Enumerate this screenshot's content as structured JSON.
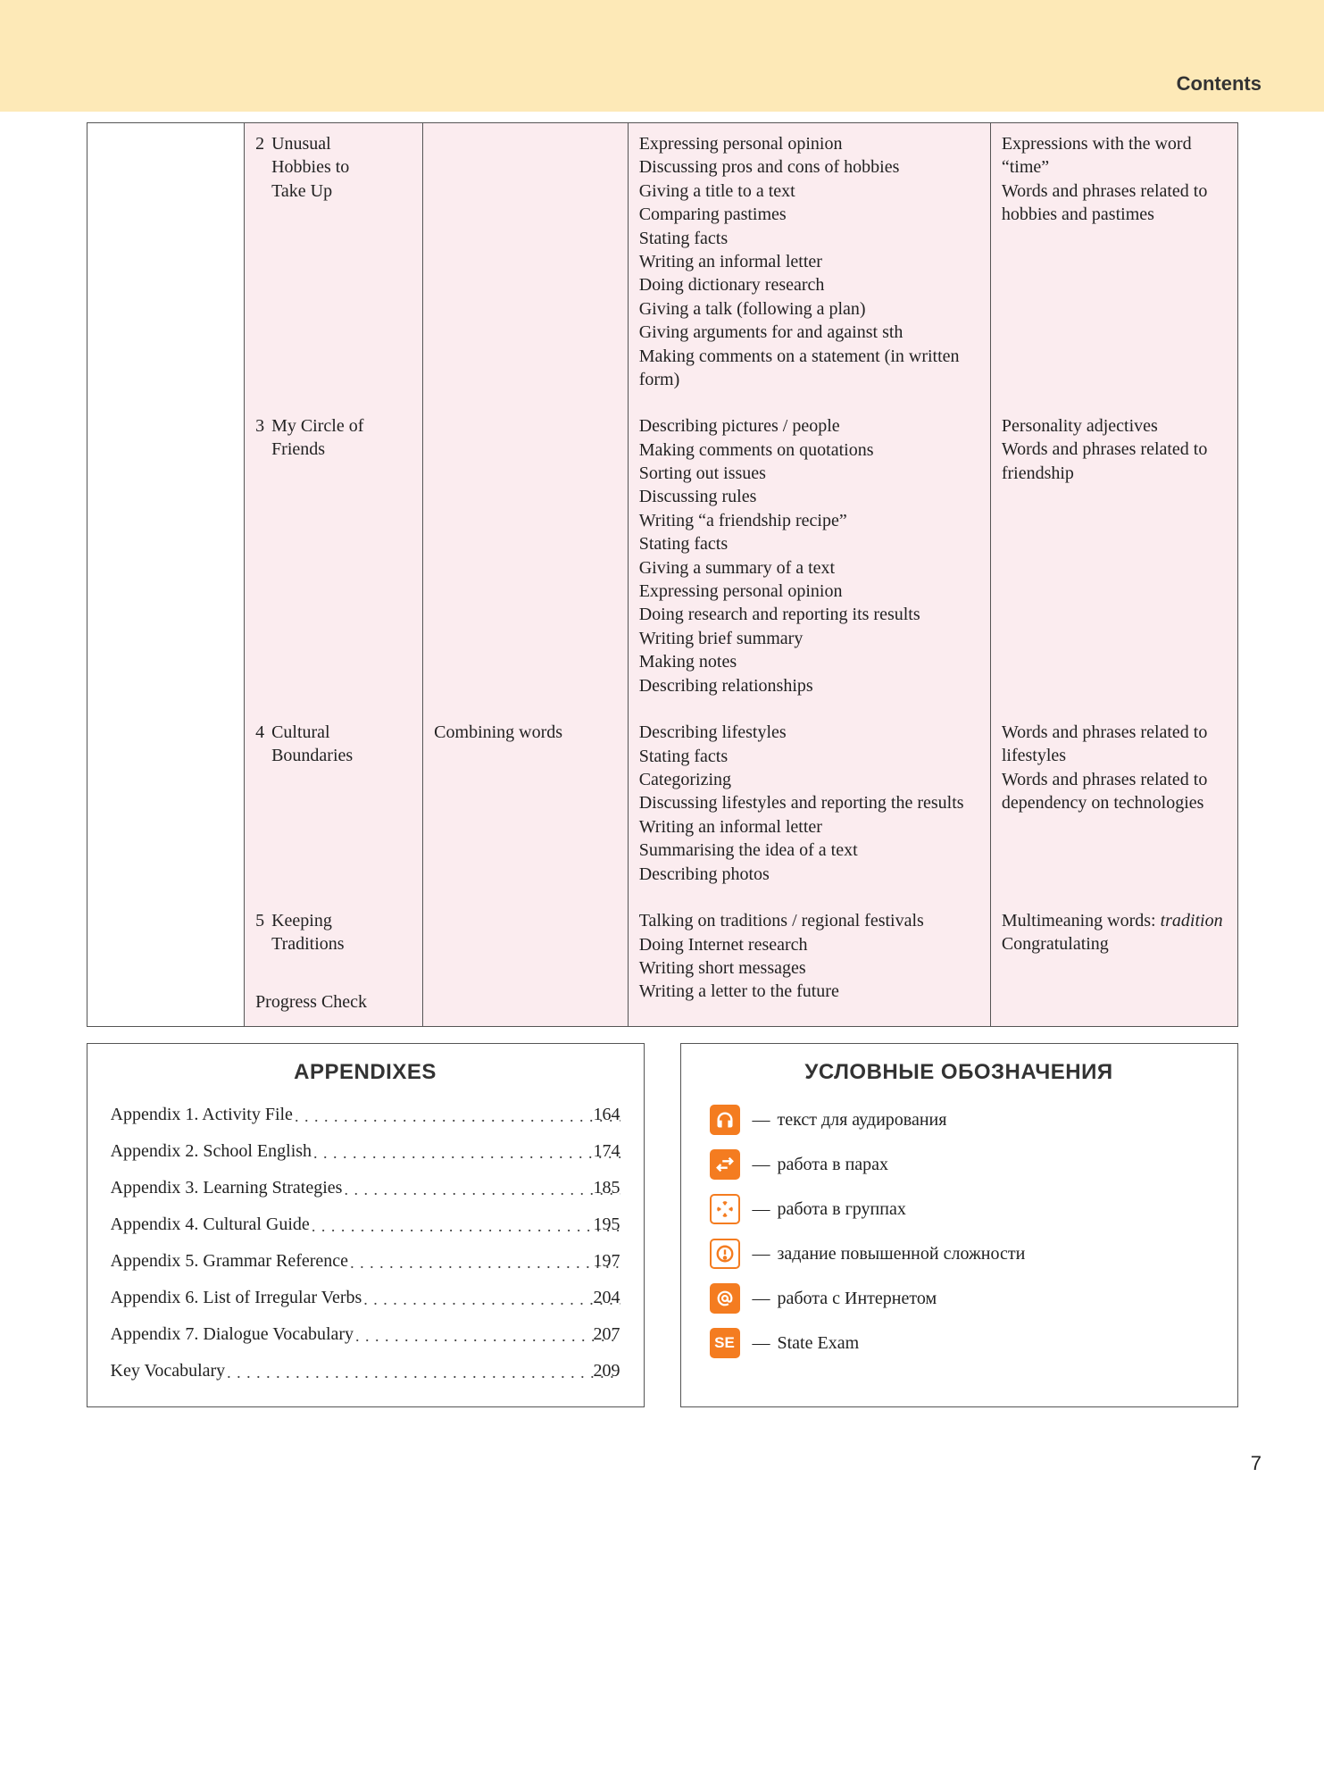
{
  "header": {
    "title": "Contents"
  },
  "pageNumber": "7",
  "units": [
    {
      "num": "2",
      "title": "Unusual Hobbies to Take Up",
      "col3": "",
      "col4": "Expressing personal opinion\nDiscussing pros and cons of hobbies\nGiving a title to a text\nComparing pastimes\nStating facts\nWriting an informal letter\nDoing dictionary research\nGiving a talk (following a plan)\nGiving arguments for and against sth\nMaking comments on a statement (in written form)",
      "col5": "Expressions with the word “time”\nWords and phrases related to hobbies and pastimes"
    },
    {
      "num": "3",
      "title": "My Circle of Friends",
      "col3": "",
      "col4": "Describing pictures / people\nMaking comments on quotations\nSorting out issues\nDiscussing rules\nWriting “a friendship recipe”\nStating facts\nGiving a summary of a text\nExpressing personal opinion\nDoing research and reporting its results\nWriting brief summary\nMaking notes\nDescribing relationships",
      "col5": "Personality adjectives\nWords and phrases related to friendship"
    },
    {
      "num": "4",
      "title": "Cultural Boundaries",
      "col3": "Combining words",
      "col4": "Describing lifestyles\nStating facts\nCategorizing\nDiscussing lifestyles and reporting the results\nWriting an informal letter\nSummarising the idea of a text\nDescribing photos",
      "col5": "Words and phrases related to lifestyles\nWords and phrases related to dependency on technologies"
    },
    {
      "num": "5",
      "title": "Keeping Traditions",
      "col3": "",
      "col4": "Talking on traditions / regional festivals\nDoing Internet research\nWriting short messages\nWriting a letter to the future",
      "col5_pre": "Multimeaning words: ",
      "col5_italic": "tradition",
      "col5_post": "Congratulating",
      "extra": "Progress Check"
    }
  ],
  "appendixes": {
    "title": "APPENDIXES",
    "items": [
      {
        "name": "Appendix 1. Activity File",
        "page": "164"
      },
      {
        "name": "Appendix 2. School English",
        "page": "174"
      },
      {
        "name": "Appendix 3. Learning Strategies",
        "page": "185"
      },
      {
        "name": "Appendix 4. Cultural Guide",
        "page": "195"
      },
      {
        "name": "Appendix 5. Grammar Reference",
        "page": "197"
      },
      {
        "name": "Appendix 6. List of Irregular Verbs",
        "page": "204"
      },
      {
        "name": "Appendix 7. Dialogue Vocabulary",
        "page": "207"
      },
      {
        "name": "Key Vocabulary",
        "page": "209"
      }
    ]
  },
  "legend": {
    "title": "УСЛОВНЫЕ ОБОЗНАЧЕНИЯ",
    "items": [
      {
        "icon": "headphones",
        "style": "solid",
        "label": "текст для аудирования"
      },
      {
        "icon": "arrows-pair",
        "style": "solid",
        "label": "работа в парах"
      },
      {
        "icon": "arrows-group",
        "style": "outline",
        "label": "работа в группах"
      },
      {
        "icon": "exclaim",
        "style": "outline",
        "label": "задание повышенной сложности"
      },
      {
        "icon": "at",
        "style": "solid",
        "label": "работа с Интернетом"
      },
      {
        "icon": "se",
        "style": "solid",
        "label": "State Exam"
      }
    ]
  },
  "colors": {
    "headerBand": "#fde9b7",
    "pinkBg": "#fbecef",
    "orange": "#f47c20",
    "border": "#555555"
  }
}
